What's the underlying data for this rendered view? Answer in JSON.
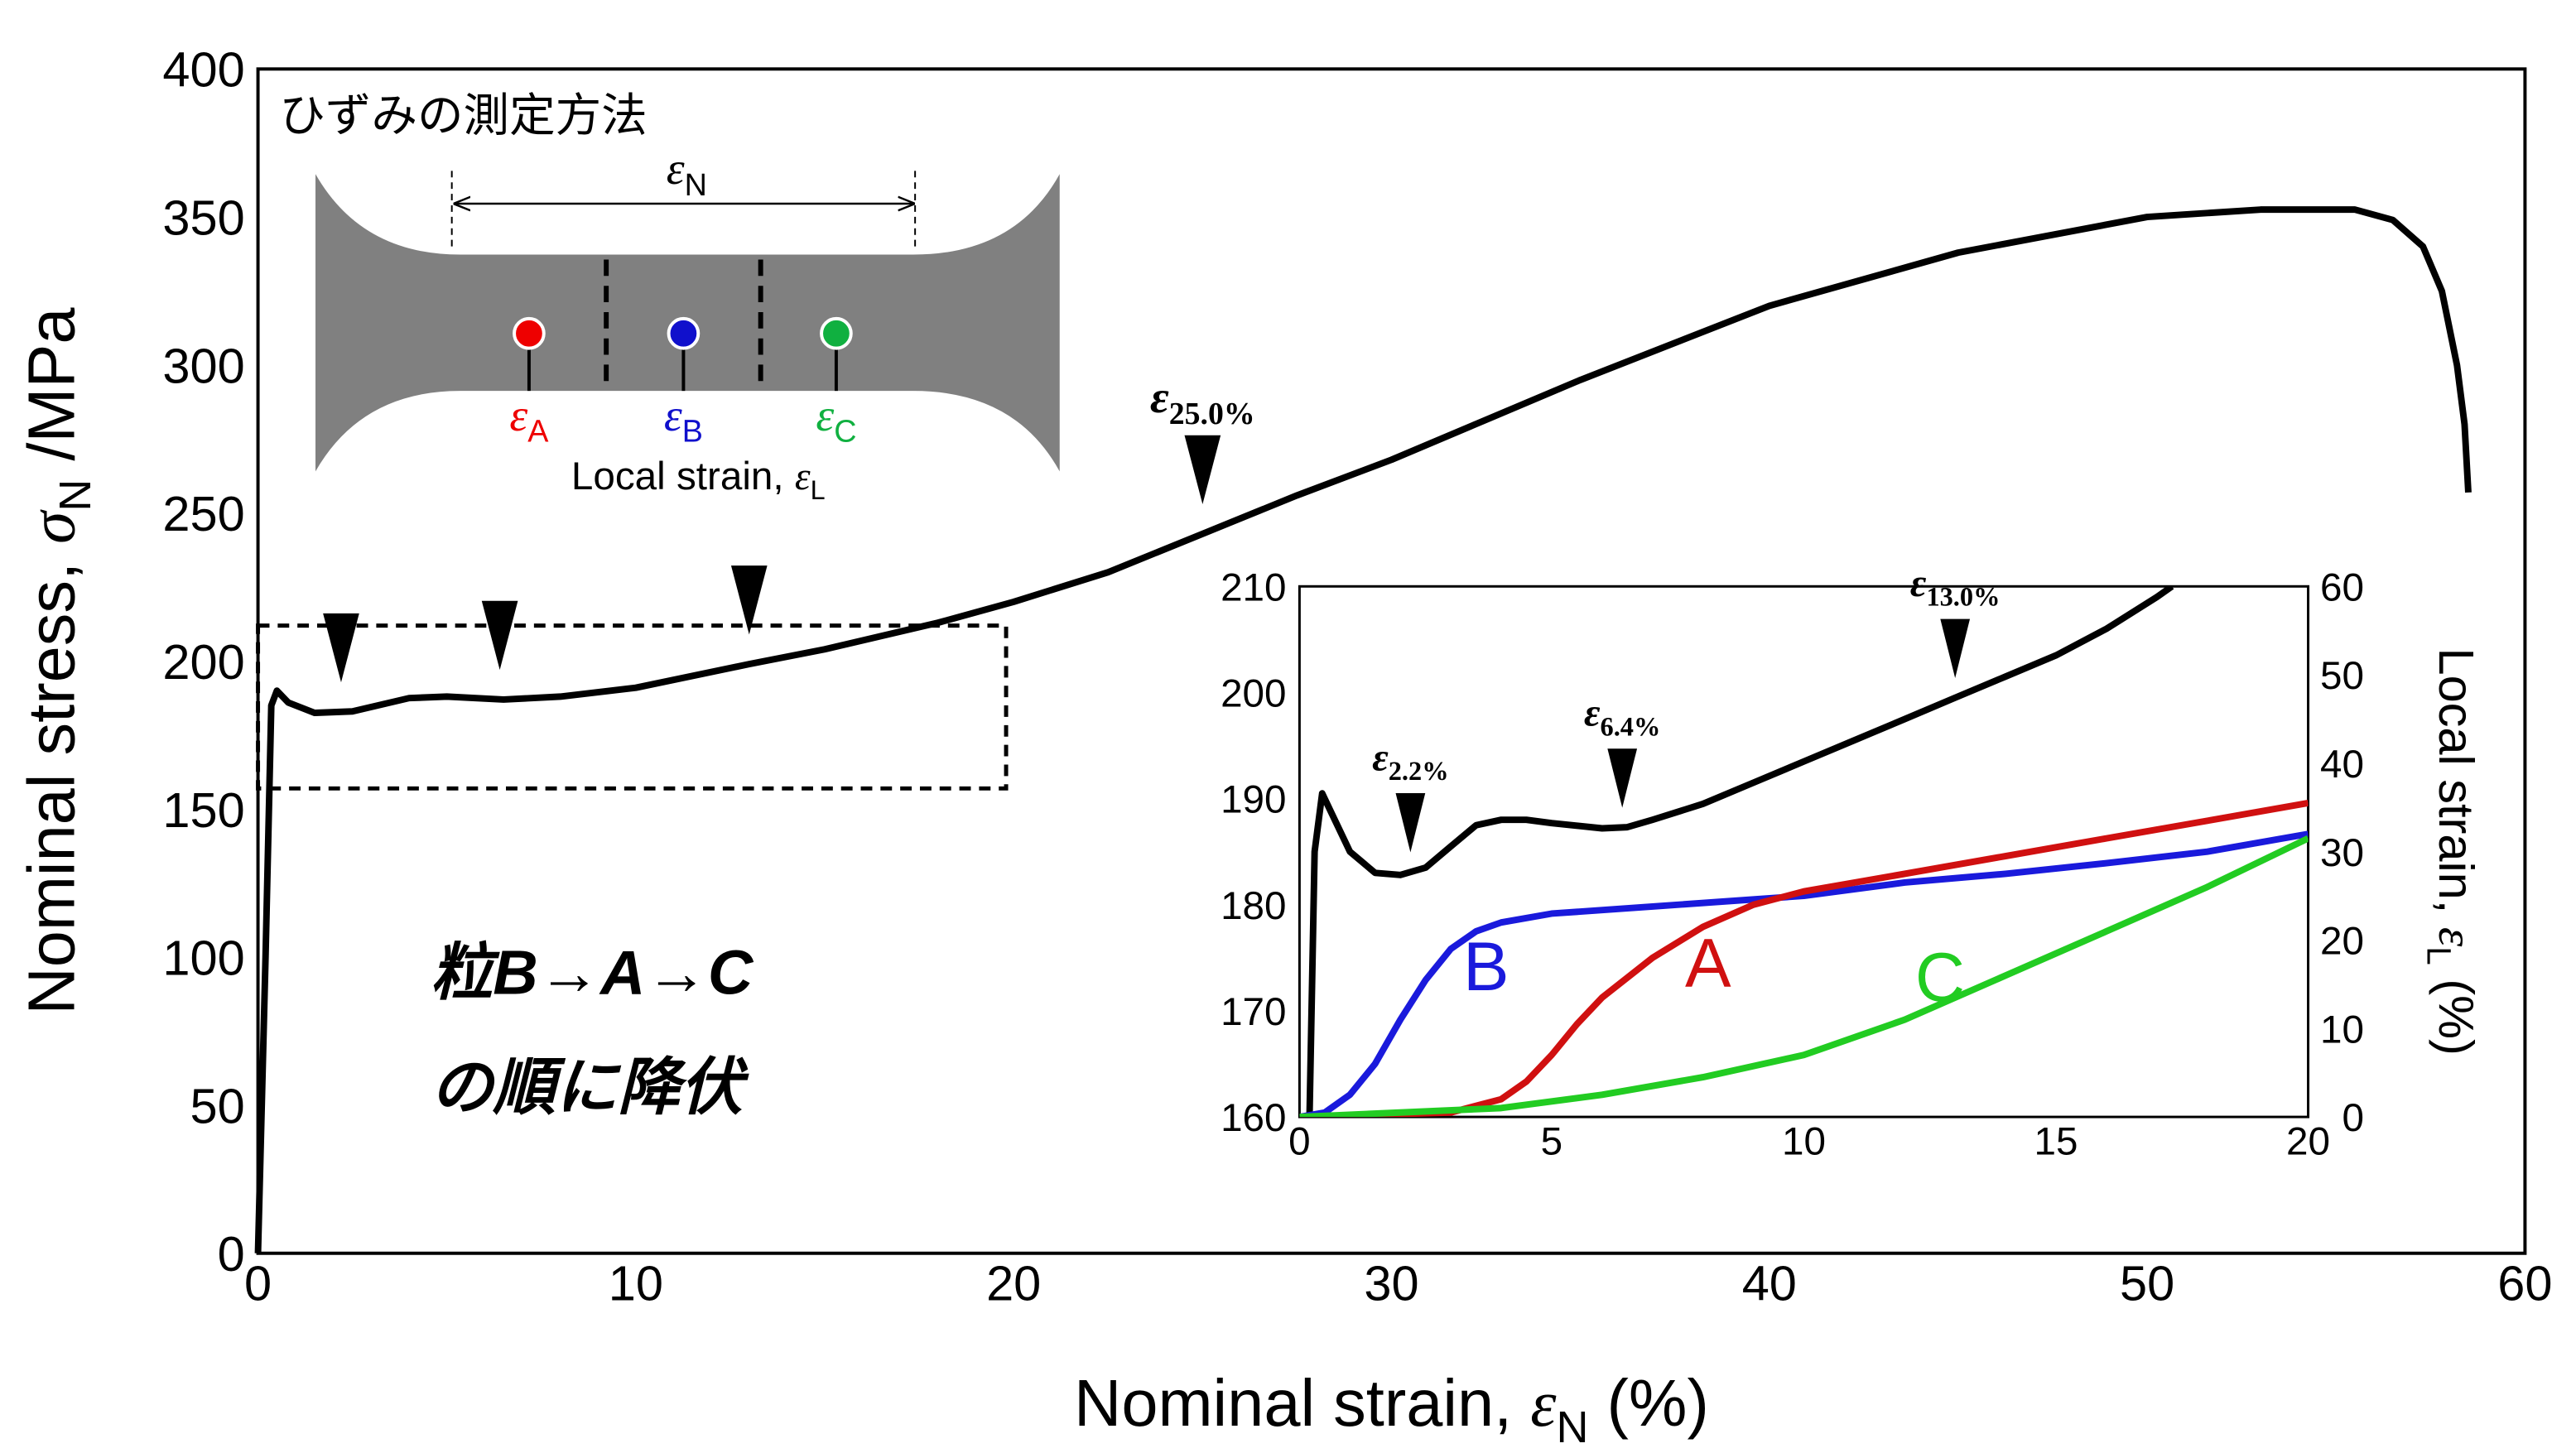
{
  "chart_data": [
    {
      "type": "line",
      "x_label": {
        "text": "Nominal strain, ",
        "symbol": "ε",
        "sub": "N",
        "tail": " (%)"
      },
      "y_label": {
        "text": "Nominal stress, ",
        "symbol": "σ",
        "sub": "N",
        "tail": " /MPa"
      },
      "xlim": [
        0,
        60
      ],
      "xticks": [
        0,
        10,
        20,
        30,
        40,
        50,
        60
      ],
      "ylim": [
        0,
        400
      ],
      "yticks": [
        0,
        50,
        100,
        150,
        200,
        250,
        300,
        350,
        400
      ],
      "series": [
        {
          "color": "#000000",
          "x": [
            0,
            0.2,
            0.35,
            0.5,
            0.8,
            1.5,
            2.5,
            4,
            5,
            6.5,
            8,
            10,
            13,
            15,
            18,
            20,
            22.5,
            25,
            27.5,
            30,
            35,
            40,
            45,
            50,
            53,
            55.5,
            56.5,
            57.3,
            57.8,
            58.2,
            58.4,
            58.5
          ],
          "values": [
            0,
            100,
            185,
            190,
            186,
            182.5,
            183,
            187.5,
            188,
            187,
            188,
            191,
            199,
            204,
            213,
            220,
            230,
            243,
            256,
            268,
            295,
            320,
            338,
            350,
            352.5,
            352.5,
            349,
            340,
            325,
            300,
            280,
            257
          ]
        }
      ],
      "markers": [
        {
          "x": 2.2
        },
        {
          "x": 6.4
        },
        {
          "x": 13.0
        },
        {
          "x": 25.0,
          "label": {
            "symbol": "ε",
            "sub": "25.0%"
          }
        }
      ],
      "zoom_box": {
        "xlim": [
          0,
          19.8
        ],
        "ylim": [
          157,
          212
        ]
      },
      "annotations": [
        "粒B→A→C",
        "の順に降伏"
      ]
    },
    {
      "type": "line",
      "y2_label": {
        "text": "Local strain, ",
        "symbol": "ε",
        "sub": "L",
        "tail": " (%)"
      },
      "xlim": [
        0,
        20
      ],
      "xticks": [
        0,
        5,
        10,
        15,
        20
      ],
      "ylim": [
        160,
        210
      ],
      "yticks": [
        160,
        170,
        180,
        190,
        200,
        210
      ],
      "y2lim": [
        0,
        60
      ],
      "y2ticks": [
        0,
        10,
        20,
        30,
        40,
        50,
        60
      ],
      "series": [
        {
          "color": "#000000",
          "x": [
            0,
            0.2,
            0.3,
            0.45,
            0.6,
            1,
            1.5,
            2,
            2.5,
            3,
            3.5,
            4,
            4.5,
            5,
            6,
            6.5,
            7,
            8,
            9,
            10,
            11,
            12,
            13,
            14,
            15,
            16,
            17,
            17.3
          ],
          "values": [
            160,
            160,
            185,
            190.5,
            189,
            185,
            183,
            182.8,
            183.5,
            185.5,
            187.5,
            188,
            188,
            187.7,
            187.2,
            187.3,
            188,
            189.5,
            191.5,
            193.5,
            195.5,
            197.5,
            199.5,
            201.5,
            203.5,
            206,
            209,
            210
          ]
        },
        {
          "name": "B",
          "color": "#1a1adc",
          "axis": "y2",
          "x": [
            0,
            0.5,
            1,
            1.5,
            2,
            2.5,
            3,
            3.5,
            4,
            5,
            7,
            10,
            12,
            14,
            16,
            18,
            20
          ],
          "values": [
            0,
            0.5,
            2.5,
            6,
            11,
            15.5,
            19,
            21,
            22,
            23,
            23.8,
            25,
            26.5,
            27.5,
            28.7,
            30,
            32
          ]
        },
        {
          "name": "A",
          "color": "#d01010",
          "axis": "y2",
          "x": [
            0,
            3,
            4,
            4.5,
            5,
            5.5,
            6,
            7,
            8,
            9,
            10,
            12,
            14,
            16,
            18,
            20
          ],
          "values": [
            0,
            0.5,
            2,
            4,
            7,
            10.5,
            13.5,
            18,
            21.5,
            24,
            25.5,
            27.5,
            29.5,
            31.5,
            33.5,
            35.5
          ]
        },
        {
          "name": "C",
          "color": "#22cc22",
          "axis": "y2",
          "x": [
            0,
            4,
            6,
            8,
            10,
            12,
            14,
            16,
            18,
            20
          ],
          "values": [
            0,
            1,
            2.5,
            4.5,
            7,
            11,
            16,
            21,
            26,
            31.5
          ]
        }
      ],
      "markers": [
        {
          "x": 2.2,
          "label": {
            "symbol": "ε",
            "sub": "2.2%"
          }
        },
        {
          "x": 6.4,
          "label": {
            "symbol": "ε",
            "sub": "6.4%"
          }
        },
        {
          "x": 13.0,
          "label": {
            "symbol": "ε",
            "sub": "13.0%"
          }
        }
      ]
    }
  ],
  "schematic": {
    "title": "ひずみの測定方法",
    "gauge": {
      "symbol": "ε",
      "sub": "N"
    },
    "points": [
      {
        "symbol": "ε",
        "sub": "A",
        "color": "#ee0000"
      },
      {
        "symbol": "ε",
        "sub": "B",
        "color": "#1010cc"
      },
      {
        "symbol": "ε",
        "sub": "C",
        "color": "#10b040"
      }
    ],
    "caption": {
      "text": "Local strain, ",
      "symbol": "ε",
      "sub": "L"
    }
  }
}
